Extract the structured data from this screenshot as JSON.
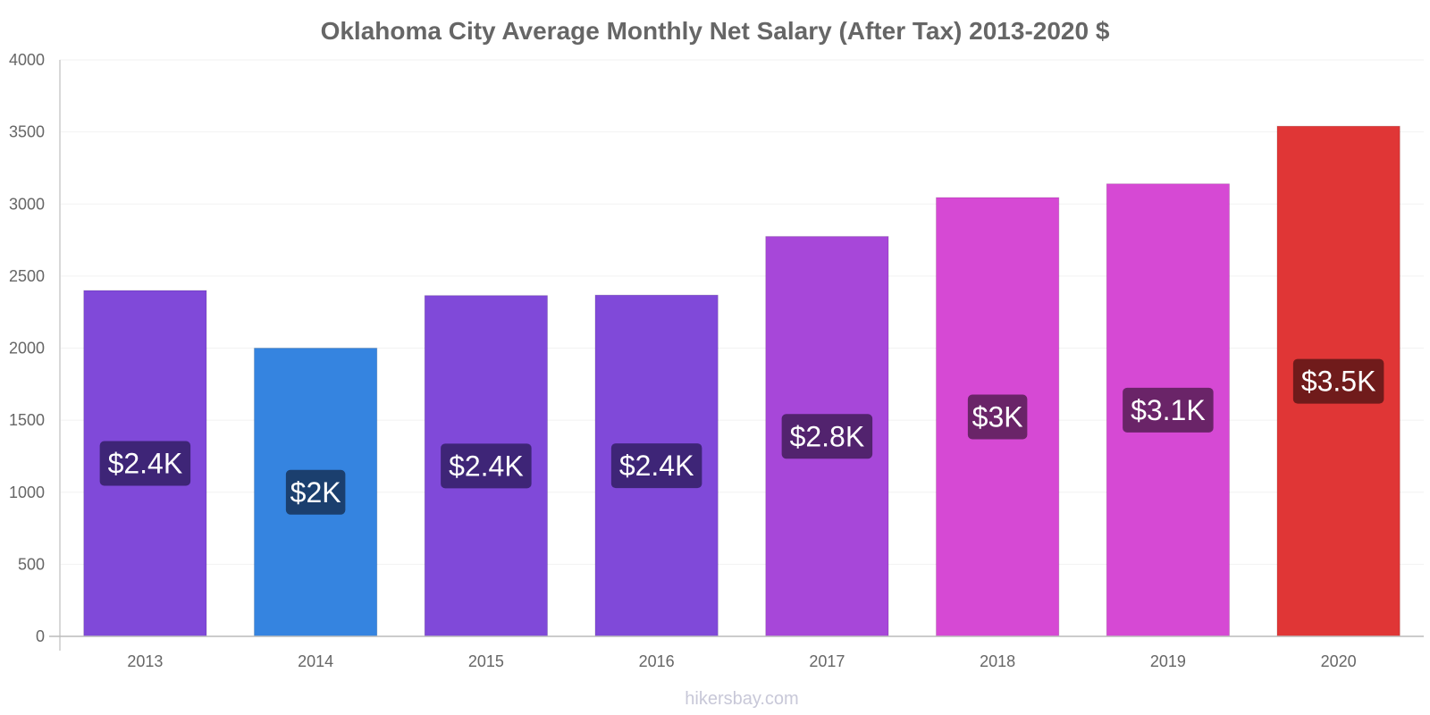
{
  "chart_data": {
    "type": "bar",
    "title": "Oklahoma City Average Monthly Net Salary (After Tax) 2013-2020 $",
    "xlabel": "",
    "ylabel": "",
    "categories": [
      "2013",
      "2014",
      "2015",
      "2016",
      "2017",
      "2018",
      "2019",
      "2020"
    ],
    "values": [
      2400,
      2000,
      2365,
      2368,
      2775,
      3045,
      3140,
      3540
    ],
    "data_labels": [
      "$2.4K",
      "$2K",
      "$2.4K",
      "$2.4K",
      "$2.8K",
      "$3K",
      "$3.1K",
      "$3.5K"
    ],
    "ylim": [
      0,
      4000
    ],
    "yticks": [
      "0",
      "500",
      "1000",
      "1500",
      "2000",
      "2500",
      "3000",
      "3500",
      "4000"
    ],
    "ytick_values": [
      0,
      500,
      1000,
      1500,
      2000,
      2500,
      3000,
      3500,
      4000
    ],
    "grid": true,
    "legend": "none",
    "bar_colors": [
      "#8049d9",
      "#3584e0",
      "#8049d9",
      "#8049d9",
      "#a747d9",
      "#d649d4",
      "#d649d4",
      "#e03636"
    ],
    "label_bg_colors": [
      "#3e2577",
      "#1b3f6e",
      "#3e2577",
      "#3e2577",
      "#52236e",
      "#6a2468",
      "#6a2468",
      "#701b1b"
    ]
  },
  "watermark": "hikersbay.com"
}
